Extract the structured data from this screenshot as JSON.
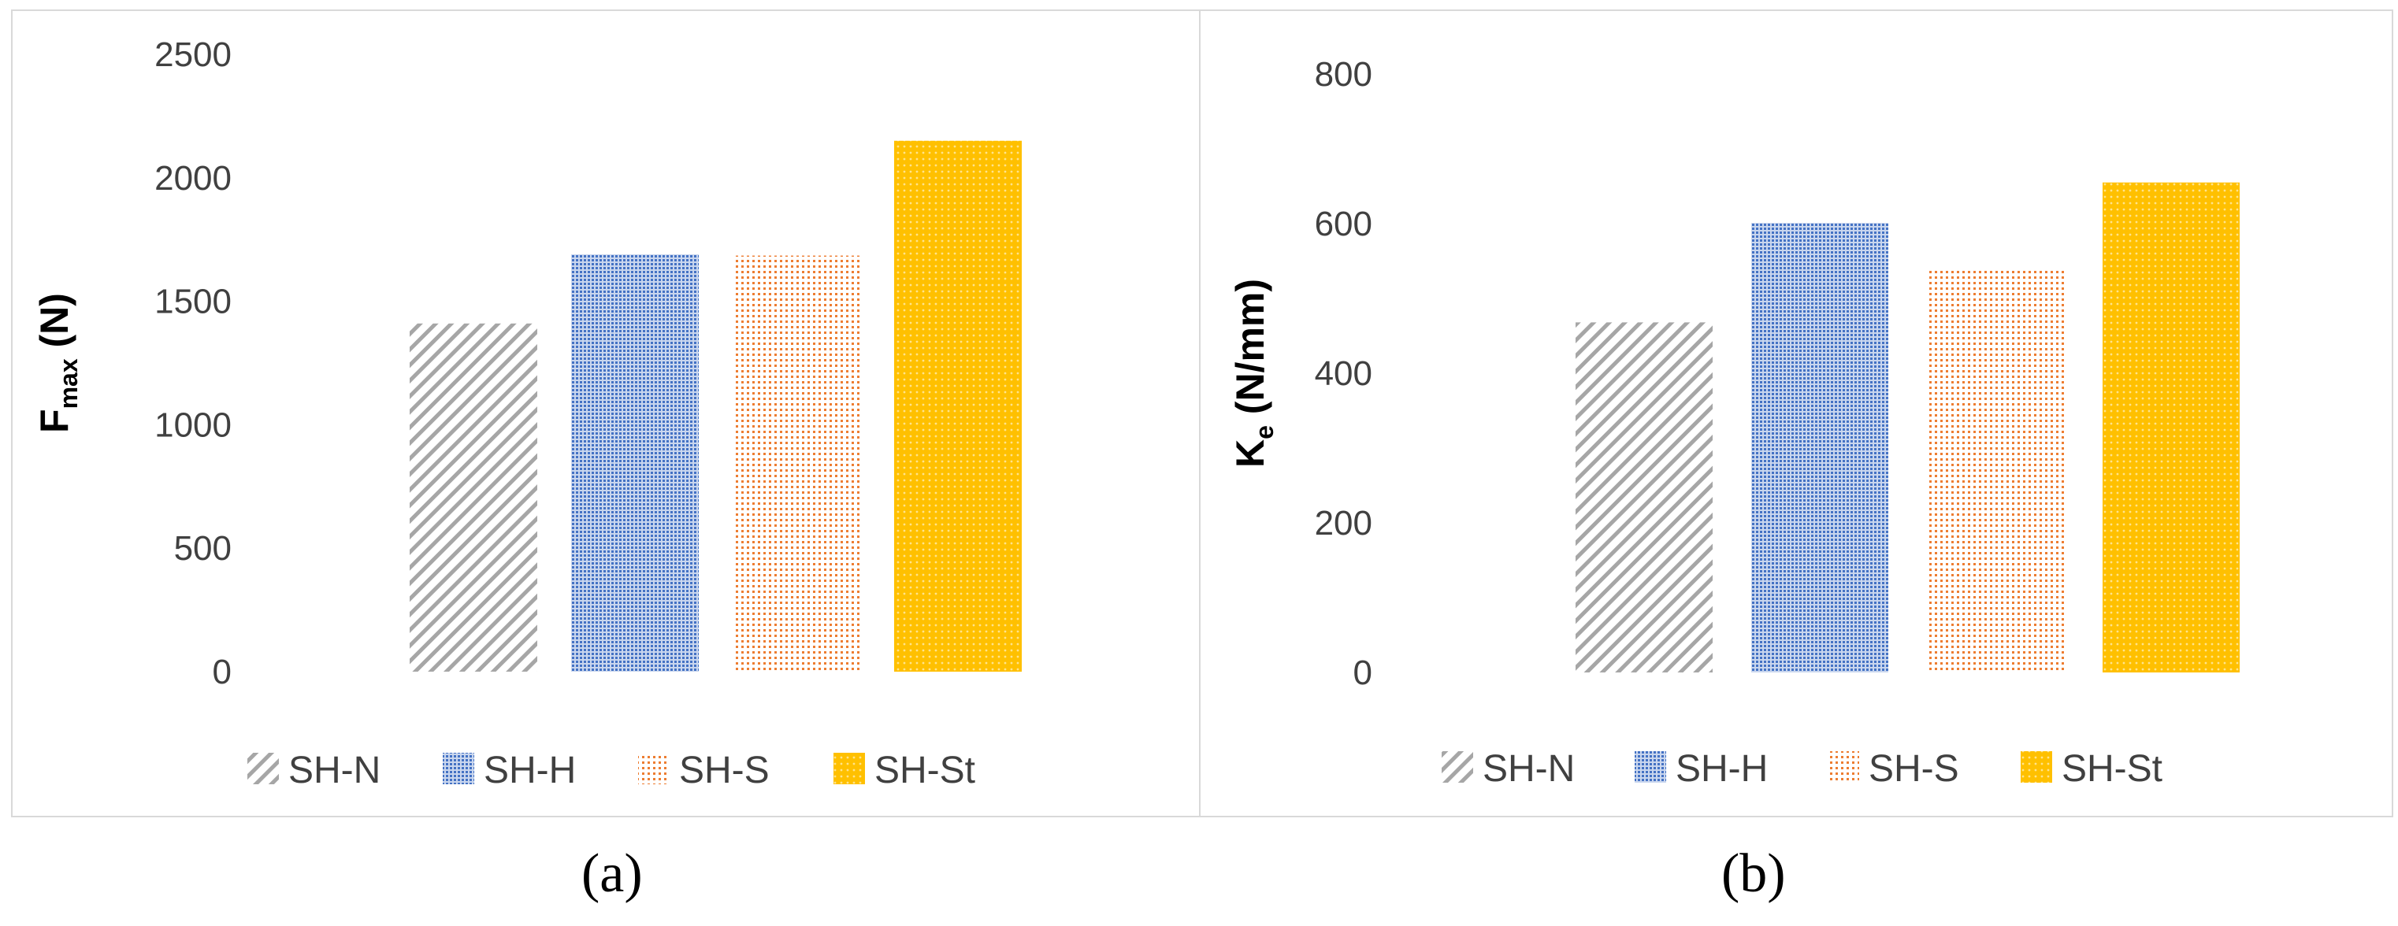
{
  "chart_data": [
    {
      "type": "bar",
      "panel_label": "(a)",
      "ylabel_main": "F",
      "ylabel_sub": "max",
      "ylabel_unit": " (N)",
      "categories": [
        "SH-N",
        "SH-H",
        "SH-S",
        "SH-St"
      ],
      "values": [
        1410,
        1690,
        1685,
        2150
      ],
      "ylim": [
        0,
        2500
      ],
      "yticks": [
        0,
        500,
        1000,
        1500,
        2000,
        2500
      ],
      "legend_position": "bottom",
      "grid": false
    },
    {
      "type": "bar",
      "panel_label": "(b)",
      "ylabel_main": "K",
      "ylabel_sub": "e",
      "ylabel_unit": " (N/mm)",
      "categories": [
        "SH-N",
        "SH-H",
        "SH-S",
        "SH-St"
      ],
      "values": [
        468,
        601,
        538,
        655
      ],
      "ylim": [
        0,
        800
      ],
      "yticks": [
        0,
        200,
        400,
        600,
        800
      ],
      "legend_position": "bottom",
      "grid": false
    }
  ],
  "series_style": {
    "SH-N": {
      "pattern": "diagonal-hatch",
      "color": "#a6a6a6"
    },
    "SH-H": {
      "pattern": "dense-dots",
      "color": "#4472c4"
    },
    "SH-S": {
      "pattern": "sparse-dots",
      "color": "#ed7d31"
    },
    "SH-St": {
      "pattern": "dotted-fill",
      "color": "#ffc000"
    }
  }
}
